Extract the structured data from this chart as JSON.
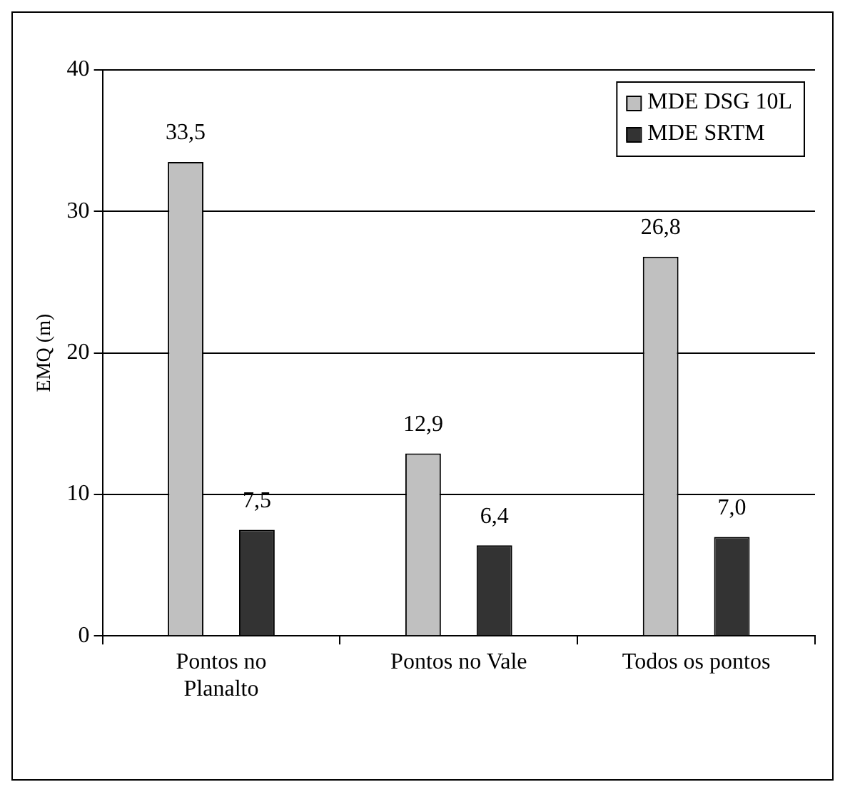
{
  "chart_data": {
    "type": "bar",
    "ylabel": "EMQ (m)",
    "categories": [
      "Pontos no Planalto",
      "Pontos no Vale",
      "Todos os pontos"
    ],
    "series": [
      {
        "name": "MDE DSG 10L",
        "color": "#c0c0c0",
        "values": [
          33.5,
          12.9,
          26.8
        ],
        "value_labels": [
          "33,5",
          "12,9",
          "26,8"
        ]
      },
      {
        "name": "MDE SRTM",
        "color": "#333333",
        "values": [
          7.5,
          6.4,
          7.0
        ],
        "value_labels": [
          "7,5",
          "6,4",
          "7,0"
        ]
      }
    ],
    "ylim": [
      0,
      40
    ],
    "yticks": [
      0,
      10,
      20,
      30,
      40
    ],
    "grid": "y",
    "legend": "top right"
  }
}
